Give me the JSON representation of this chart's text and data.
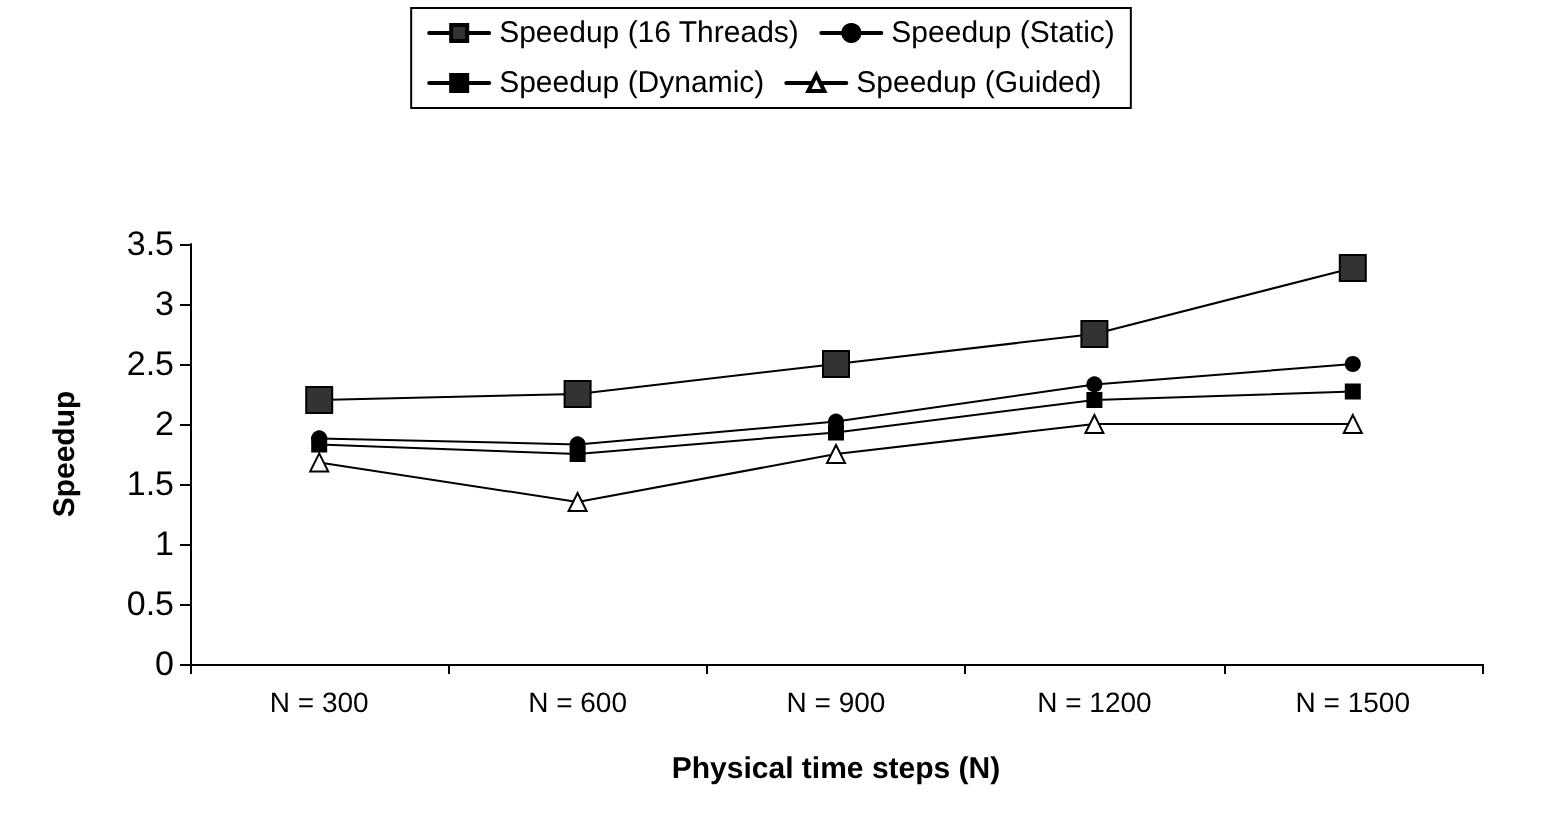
{
  "chart_data": {
    "type": "line",
    "xlabel": "Physical time steps (N)",
    "ylabel": "Speedup",
    "categories": [
      "N = 300",
      "N = 600",
      "N = 900",
      "N = 1200",
      "N = 1500"
    ],
    "series": [
      {
        "name": "Speedup (16 Threads)",
        "color": "#000000",
        "marker": "square",
        "values": [
          2.2,
          2.25,
          2.5,
          2.75,
          3.3
        ]
      },
      {
        "name": "Speedup (Static)",
        "color": "#000000",
        "marker": "circle",
        "values": [
          1.88,
          1.83,
          2.02,
          2.33,
          2.5
        ]
      },
      {
        "name": "Speedup (Dynamic)",
        "color": "#000000",
        "marker": "square",
        "values": [
          1.83,
          1.75,
          1.93,
          2.2,
          2.27
        ]
      },
      {
        "name": "Speedup (Guided)",
        "color": "#000000",
        "marker": "triangle",
        "values": [
          1.68,
          1.35,
          1.75,
          2.0,
          2.0
        ]
      }
    ],
    "ylim": [
      0,
      3.5
    ],
    "yticks": [
      0,
      0.5,
      1,
      1.5,
      2,
      2.5,
      3,
      3.5
    ],
    "grid": false,
    "legend": "top",
    "line_style": "solid"
  }
}
